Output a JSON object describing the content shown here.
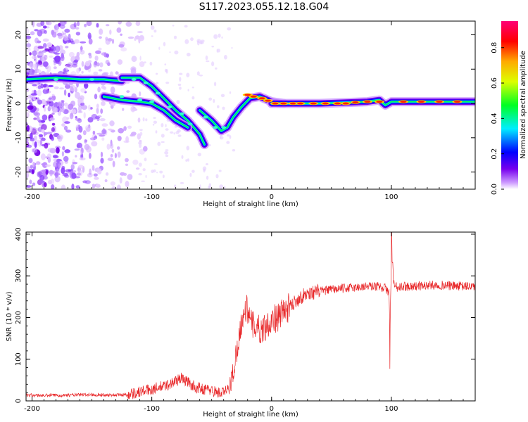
{
  "title": "S117.2023.055.12.18.G04",
  "chart_data": [
    {
      "type": "heatmap",
      "xlabel": "Height of straight line (km)",
      "ylabel": "Frequency (Hz)",
      "xlim": [
        -205,
        170
      ],
      "ylim": [
        -25,
        24
      ],
      "xticks": [
        -200,
        -100,
        0,
        100
      ],
      "yticks": [
        -20,
        -10,
        0,
        10,
        20
      ],
      "colorbar": {
        "label": "Normalized spectral amplitude",
        "range": [
          0,
          0.95
        ],
        "ticks": [
          0.0,
          0.2,
          0.4,
          0.6,
          0.8
        ]
      },
      "ridges": [
        {
          "x": [
            -205,
            -180,
            -160,
            -140,
            -125
          ],
          "y": [
            7,
            7.5,
            7,
            7,
            6.5
          ]
        },
        {
          "x": [
            -125,
            -110,
            -100,
            -90,
            -80,
            -70,
            -60,
            -56
          ],
          "y": [
            7.5,
            7.5,
            5,
            1.5,
            -2,
            -5,
            -9,
            -12
          ]
        },
        {
          "x": [
            -140,
            -125,
            -110,
            -100,
            -90,
            -80,
            -70
          ],
          "y": [
            2,
            1,
            0.5,
            0,
            -2,
            -5,
            -7
          ]
        },
        {
          "x": [
            -60,
            -50,
            -42,
            -37,
            -32,
            -25,
            -18,
            -10,
            0,
            10
          ],
          "y": [
            -2,
            -5,
            -8,
            -7,
            -4,
            -1,
            1.5,
            2,
            0.5,
            0
          ]
        },
        {
          "x": [
            0,
            40,
            80,
            90,
            95,
            100,
            130,
            170
          ],
          "y": [
            0,
            0,
            0.5,
            1,
            -0.5,
            0.5,
            0.5,
            0.5
          ]
        }
      ]
    },
    {
      "type": "line",
      "xlabel": "Height of straight line (km)",
      "ylabel": "SNR (10 * v/v)",
      "xlim": [
        -205,
        170
      ],
      "ylim": [
        0,
        405
      ],
      "xticks": [
        -200,
        -100,
        0,
        100
      ],
      "yticks": [
        0,
        100,
        200,
        300,
        400
      ],
      "series": [
        {
          "color": "#e8282a",
          "x": [
            -205,
            -190,
            -170,
            -150,
            -130,
            -120,
            -110,
            -100,
            -90,
            -85,
            -80,
            -75,
            -70,
            -65,
            -60,
            -55,
            -50,
            -45,
            -40,
            -35,
            -32,
            -28,
            -25,
            -22,
            -20,
            -18,
            -15,
            -12,
            -10,
            -5,
            0,
            5,
            10,
            15,
            20,
            25,
            30,
            40,
            50,
            60,
            70,
            80,
            90,
            95,
            98,
            99,
            100,
            101,
            102,
            105,
            110,
            120,
            130,
            140,
            150,
            160,
            170
          ],
          "y": [
            14,
            13,
            14,
            15,
            14,
            15,
            22,
            28,
            35,
            40,
            48,
            55,
            45,
            35,
            30,
            28,
            25,
            20,
            20,
            30,
            70,
            140,
            190,
            220,
            220,
            190,
            180,
            185,
            165,
            180,
            195,
            200,
            215,
            225,
            240,
            250,
            258,
            263,
            267,
            270,
            272,
            275,
            275,
            270,
            260,
            150,
            350,
            330,
            280,
            270,
            275,
            275,
            277,
            278,
            276,
            275,
            275
          ]
        }
      ]
    }
  ]
}
